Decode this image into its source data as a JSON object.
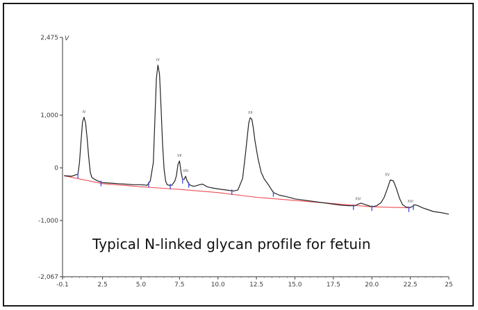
{
  "chart_data": {
    "type": "line",
    "title": "",
    "subtitle": "",
    "xlabel": "",
    "ylabel": "",
    "y_axis_unit": "V",
    "xlim": [
      -0.1,
      25.0
    ],
    "ylim": [
      -2067,
      2475
    ],
    "grid": false,
    "x_ticks": [
      {
        "v": -0.1,
        "label": "-0.1"
      },
      {
        "v": 2.5,
        "label": "2.5"
      },
      {
        "v": 5.0,
        "label": "5.0"
      },
      {
        "v": 7.5,
        "label": "7.5"
      },
      {
        "v": 10.0,
        "label": "10.0"
      },
      {
        "v": 12.5,
        "label": "12.5"
      },
      {
        "v": 15.0,
        "label": "15.0"
      },
      {
        "v": 17.5,
        "label": "17.5"
      },
      {
        "v": 20.0,
        "label": "20.0"
      },
      {
        "v": 22.5,
        "label": "22.5"
      },
      {
        "v": 25.0,
        "label": "25"
      }
    ],
    "y_ticks": [
      {
        "v": 2475,
        "label": "2,475"
      },
      {
        "v": 1000,
        "label": "1,000"
      },
      {
        "v": 0,
        "label": "0"
      },
      {
        "v": -1000,
        "label": "-1,000"
      },
      {
        "v": -2067,
        "label": "-2,067"
      }
    ],
    "series": [
      {
        "color": "#222222",
        "x": [
          0.0,
          0.5,
          0.9,
          1.0,
          1.1,
          1.2,
          1.3,
          1.4,
          1.5,
          1.6,
          1.7,
          1.8,
          1.9,
          2.0,
          2.2,
          2.5,
          3.0,
          3.5,
          4.0,
          4.5,
          5.0,
          5.4,
          5.6,
          5.8,
          5.9,
          6.0,
          6.1,
          6.2,
          6.3,
          6.4,
          6.5,
          6.6,
          6.7,
          6.8,
          7.0,
          7.2,
          7.3,
          7.4,
          7.5,
          7.6,
          7.7,
          7.8,
          7.9,
          8.0,
          8.1,
          8.2,
          8.4,
          8.6,
          8.8,
          9.0,
          9.3,
          9.6,
          10.0,
          10.5,
          11.0,
          11.3,
          11.6,
          11.8,
          12.0,
          12.1,
          12.2,
          12.3,
          12.4,
          12.6,
          12.8,
          13.0,
          13.3,
          13.6,
          14.0,
          14.5,
          15.0,
          15.5,
          16.0,
          16.5,
          17.0,
          17.5,
          18.0,
          18.5,
          18.9,
          19.1,
          19.3,
          19.5,
          19.7,
          20.0,
          20.3,
          20.6,
          20.8,
          21.0,
          21.2,
          21.4,
          21.6,
          21.8,
          22.0,
          22.2,
          22.4,
          22.6,
          22.8,
          23.0,
          23.3,
          23.6,
          24.0,
          24.5,
          25.0
        ],
        "y": [
          -150,
          -160,
          -120,
          100,
          500,
          870,
          960,
          850,
          560,
          200,
          -80,
          -180,
          -200,
          -220,
          -250,
          -280,
          -290,
          -300,
          -310,
          -320,
          -320,
          -330,
          -250,
          100,
          900,
          1700,
          1950,
          1780,
          1150,
          450,
          -30,
          -250,
          -320,
          -330,
          -330,
          -250,
          -150,
          60,
          130,
          -80,
          -220,
          -220,
          -160,
          -250,
          -300,
          -330,
          -350,
          -340,
          -320,
          -310,
          -360,
          -380,
          -400,
          -420,
          -440,
          -420,
          -200,
          300,
          850,
          950,
          920,
          750,
          520,
          180,
          -80,
          -210,
          -330,
          -470,
          -520,
          -550,
          -590,
          -610,
          -630,
          -650,
          -670,
          -690,
          -710,
          -720,
          -720,
          -690,
          -670,
          -690,
          -710,
          -740,
          -720,
          -660,
          -560,
          -400,
          -230,
          -250,
          -400,
          -580,
          -700,
          -740,
          -760,
          -740,
          -700,
          -720,
          -760,
          -790,
          -830,
          -850,
          -880
        ]
      },
      {
        "color": "#f04b55",
        "x": [
          0.0,
          2.5,
          5.0,
          7.5,
          10.0,
          12.5,
          15.0,
          17.5,
          20.0,
          22.5
        ],
        "y": [
          -150,
          -300,
          -360,
          -410,
          -470,
          -560,
          -620,
          -680,
          -740,
          -760
        ]
      }
    ],
    "peak_labels": [
      {
        "x": 1.3,
        "y": 960,
        "label": "IV"
      },
      {
        "x": 6.1,
        "y": 1950,
        "label": "IV"
      },
      {
        "x": 7.5,
        "y": 130,
        "label": "VII"
      },
      {
        "x": 7.9,
        "y": -160,
        "label": "VIII"
      },
      {
        "x": 12.1,
        "y": 950,
        "label": "XII"
      },
      {
        "x": 19.1,
        "y": -690,
        "label": "XIV"
      },
      {
        "x": 21.0,
        "y": -230,
        "label": "XV"
      },
      {
        "x": 22.5,
        "y": -740,
        "label": "XVI"
      }
    ],
    "boundary_markers": [
      0.9,
      2.4,
      5.5,
      6.9,
      7.7,
      8.1,
      10.9,
      13.6,
      18.8,
      20.0,
      22.4,
      22.7
    ],
    "annotations": [
      "Typical N-linked glycan profile for fetuin"
    ]
  }
}
